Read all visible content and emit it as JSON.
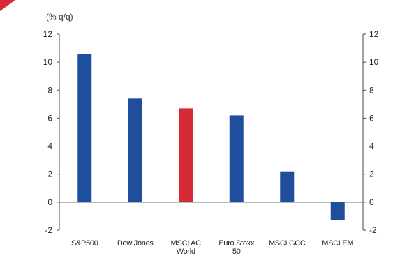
{
  "chart_data": {
    "type": "bar",
    "ylabel": "(% q/q)",
    "categories": [
      [
        "S&P500"
      ],
      [
        "Dow Jones"
      ],
      [
        "MSCI AC",
        "World"
      ],
      [
        "Euro Stoxx",
        "50"
      ],
      [
        "MSCI GCC"
      ],
      [
        "MSCI EM"
      ]
    ],
    "values": [
      10.6,
      7.4,
      6.7,
      6.2,
      2.2,
      -1.3
    ],
    "bar_colors": [
      "#1f4e9c",
      "#1f4e9c",
      "#d62b35",
      "#1f4e9c",
      "#1f4e9c",
      "#1f4e9c"
    ],
    "ylim": [
      -2,
      12
    ],
    "yticks": [
      -2,
      0,
      2,
      4,
      6,
      8,
      10,
      12
    ],
    "grid": false,
    "secondary_axis": true
  },
  "colors": {
    "accent_red": "#d62b35",
    "series_blue": "#1f4e9c"
  }
}
